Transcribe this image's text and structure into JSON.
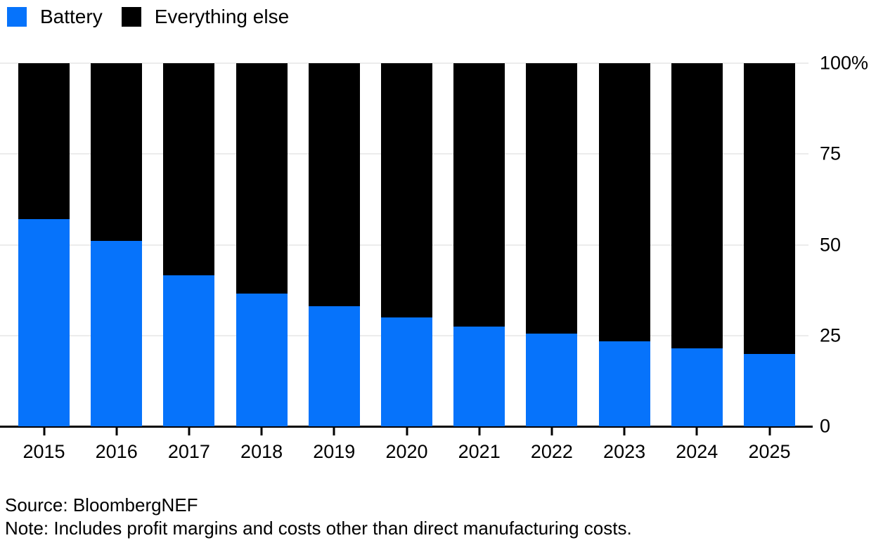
{
  "legend": {
    "items": [
      {
        "label": "Battery",
        "color": "#0673fb",
        "icon": "blue-square-swatch"
      },
      {
        "label": "Everything else",
        "color": "#000000",
        "icon": "black-square-swatch"
      }
    ]
  },
  "chart_data": {
    "type": "bar",
    "variant": "stacked-100-percent",
    "title": "",
    "xlabel": "",
    "ylabel": "",
    "unit": "%",
    "ylim": [
      0,
      100
    ],
    "grid": "horizontal",
    "legend_position": "top-left",
    "y_axis": {
      "side": "right",
      "tick_labels": [
        "100%",
        "75",
        "50",
        "25",
        "0"
      ],
      "tick_values": [
        100,
        75,
        50,
        25,
        0
      ]
    },
    "categories": [
      "2015",
      "2016",
      "2017",
      "2018",
      "2019",
      "2020",
      "2021",
      "2022",
      "2023",
      "2024",
      "2025"
    ],
    "series": [
      {
        "name": "Battery",
        "color": "#0673fb",
        "values": [
          57,
          51,
          41.5,
          36.5,
          33,
          30,
          27.5,
          25.5,
          23.5,
          21.5,
          20
        ]
      },
      {
        "name": "Everything else",
        "color": "#000000",
        "values": [
          43,
          49,
          58.5,
          63.5,
          67,
          70,
          72.5,
          74.5,
          76.5,
          78.5,
          80
        ]
      }
    ]
  },
  "footer": {
    "source": "Source: BloombergNEF",
    "note": "Note: Includes profit margins and costs other than direct manufacturing costs."
  }
}
